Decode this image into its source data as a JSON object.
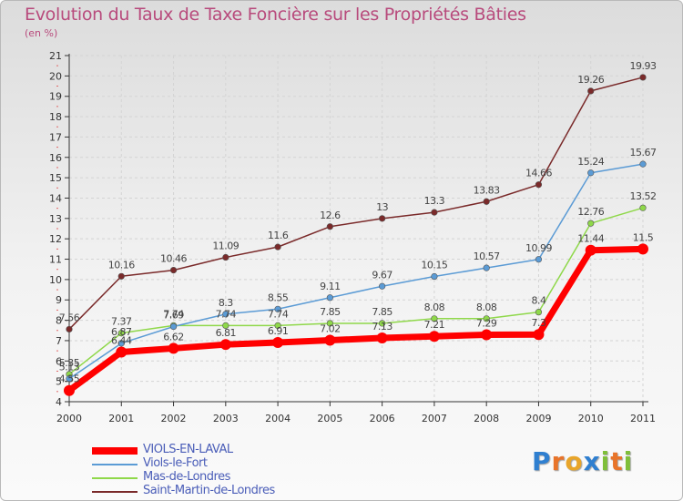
{
  "chart_data": {
    "type": "line",
    "title": "Evolution du Taux de Taxe Foncière sur les Propriétés Bâties",
    "subtitle": "(en %)",
    "x": [
      "2000",
      "2001",
      "2002",
      "2003",
      "2004",
      "2005",
      "2006",
      "2007",
      "2008",
      "2009",
      "2010",
      "2011"
    ],
    "ylim": [
      4,
      21
    ],
    "yticks": [
      4,
      5,
      6,
      7,
      8,
      9,
      10,
      11,
      12,
      13,
      14,
      15,
      16,
      17,
      18,
      19,
      20,
      21
    ],
    "grid": true,
    "series": [
      {
        "name": "VIOLS-EN-LAVAL",
        "color": "#ff0000",
        "width": 7,
        "marker_r": 6,
        "values": [
          4.55,
          6.44,
          6.62,
          6.81,
          6.91,
          7.02,
          7.13,
          7.21,
          7.29,
          7.3,
          11.44,
          11.5
        ],
        "labels": [
          "4.55",
          "6.44",
          "6.62",
          "6.81",
          "6.91",
          "7.02",
          "7.13",
          "7.21",
          "7.29",
          "7.3",
          "11.44",
          "11.5"
        ]
      },
      {
        "name": "Viols-le-Fort",
        "color": "#5b9bd5",
        "width": 1.5,
        "marker_r": 3.3,
        "values": [
          5.13,
          6.87,
          7.69,
          8.3,
          8.55,
          9.11,
          9.67,
          10.15,
          10.57,
          10.99,
          15.24,
          15.67
        ],
        "labels": [
          "5.13",
          "6.87",
          "7.69",
          "8.3",
          "8.55",
          "9.11",
          "9.67",
          "10.15",
          "10.57",
          "10.99",
          "15.24",
          "15.67"
        ]
      },
      {
        "name": "Mas-de-Londres",
        "color": "#8fd84a",
        "width": 1.5,
        "marker_r": 3.3,
        "values": [
          5.35,
          7.37,
          7.74,
          7.74,
          7.74,
          7.85,
          7.85,
          8.08,
          8.08,
          8.4,
          12.76,
          13.52
        ],
        "labels": [
          "5.35",
          "7.37",
          "7.74",
          "7.74",
          "7.74",
          "7.85",
          "7.85",
          "8.08",
          "8.08",
          "8.4",
          "12.76",
          "13.52"
        ]
      },
      {
        "name": "Saint-Martin-de-Londres",
        "color": "#7a2a2a",
        "width": 1.5,
        "marker_r": 3.3,
        "values": [
          7.56,
          10.16,
          10.46,
          11.09,
          11.6,
          12.6,
          13,
          13.3,
          13.83,
          14.66,
          19.26,
          19.93
        ],
        "labels": [
          "7.56",
          "10.16",
          "10.46",
          "11.09",
          "11.6",
          "12.6",
          "13",
          "13.3",
          "13.83",
          "14.66",
          "19.26",
          "19.93"
        ]
      }
    ],
    "legend": [
      "VIOLS-EN-LAVAL",
      "Viols-le-Fort",
      "Mas-de-Londres",
      "Saint-Martin-de-Londres"
    ]
  },
  "logo": {
    "letters": [
      "P",
      "r",
      "o",
      "x",
      "i",
      "t",
      "i"
    ],
    "colors": [
      "#2f7fd0",
      "#e8742a",
      "#e8a52a",
      "#2f7fd0",
      "#7fbf3a",
      "#e8742a",
      "#7fbf3a"
    ]
  }
}
